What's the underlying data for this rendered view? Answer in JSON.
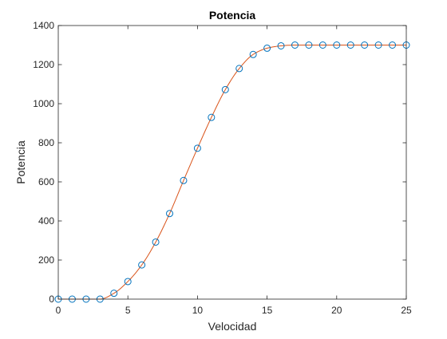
{
  "chart_data": {
    "type": "line",
    "title": "Potencia",
    "xlabel": "Velocidad",
    "ylabel": "Potencia",
    "xlim": [
      0,
      25
    ],
    "ylim": [
      0,
      1400
    ],
    "xticks": [
      0,
      5,
      10,
      15,
      20,
      25
    ],
    "yticks": [
      0,
      200,
      400,
      600,
      800,
      1000,
      1200,
      1400
    ],
    "xtick_labels": [
      "0",
      "5",
      "10",
      "15",
      "20",
      "25"
    ],
    "ytick_labels": [
      "0",
      "200",
      "400",
      "600",
      "800",
      "1000",
      "1200",
      "1400"
    ],
    "grid": false,
    "box": true,
    "series": [
      {
        "style": "markers",
        "marker": "circle",
        "color": "#0072BD",
        "x": [
          0,
          1,
          2,
          3,
          4,
          5,
          6,
          7,
          8,
          9,
          10,
          11,
          12,
          13,
          14,
          15,
          16,
          17,
          18,
          19,
          20,
          21,
          22,
          23,
          24,
          25
        ],
        "y": [
          0,
          0,
          0,
          0,
          30,
          90,
          175,
          292,
          438,
          607,
          772,
          930,
          1072,
          1180,
          1252,
          1284,
          1296,
          1300,
          1300,
          1300,
          1300,
          1300,
          1300,
          1300,
          1300,
          1300
        ]
      },
      {
        "style": "line",
        "color": "#D95319",
        "interpolation": "smooth",
        "x": [
          0,
          1,
          2,
          3,
          4,
          5,
          6,
          7,
          8,
          9,
          10,
          11,
          12,
          13,
          14,
          15,
          16,
          17,
          18,
          19,
          20,
          21,
          22,
          23,
          24,
          25
        ],
        "y": [
          0,
          0,
          0,
          0,
          30,
          90,
          175,
          292,
          438,
          607,
          772,
          930,
          1072,
          1180,
          1252,
          1284,
          1296,
          1300,
          1300,
          1300,
          1300,
          1300,
          1300,
          1300,
          1300,
          1300
        ]
      }
    ]
  }
}
